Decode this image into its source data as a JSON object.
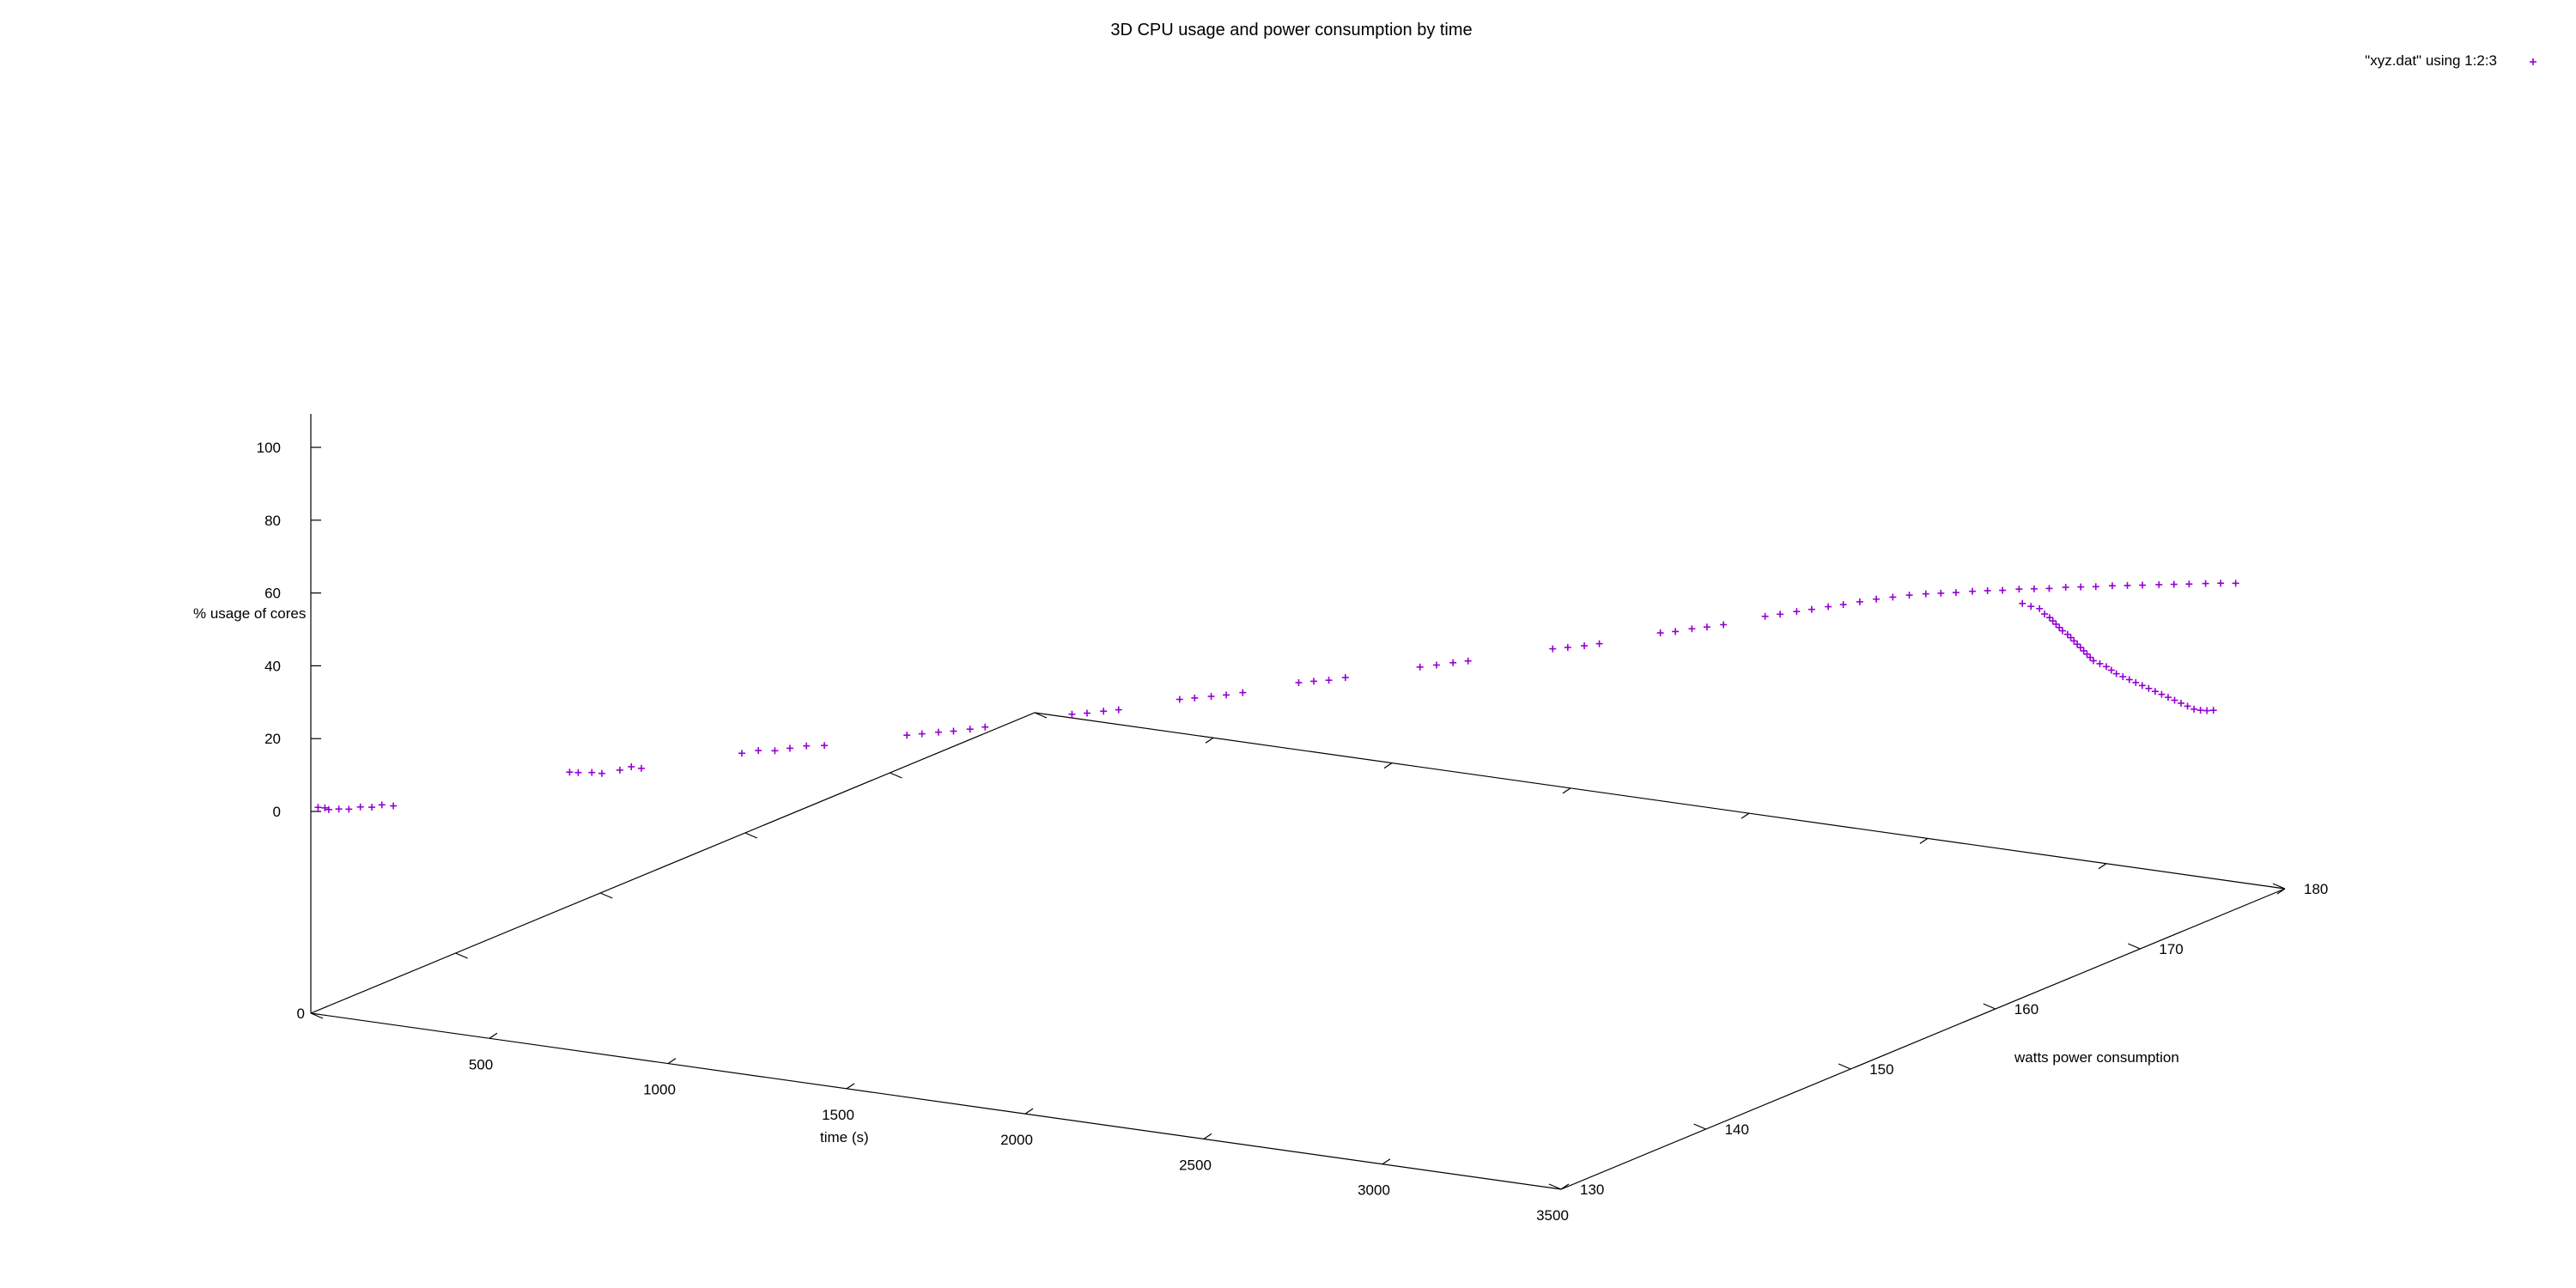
{
  "chart_data": {
    "type": "scatter",
    "title": "3D CPU usage and power consumption by time",
    "legend": {
      "label": "\"xyz.dat\" using 1:2:3",
      "position": "top-right"
    },
    "marker": "+",
    "color": "#9400d3",
    "axes": {
      "x": {
        "label": "time (s)",
        "range": [
          0,
          3500
        ],
        "ticks": [
          "500",
          "1000",
          "1500",
          "2000",
          "2500",
          "3000",
          "3500"
        ]
      },
      "y": {
        "label": "watts power consumption",
        "range": [
          130,
          180
        ],
        "ticks": [
          "130",
          "140",
          "150",
          "160",
          "170",
          "180"
        ]
      },
      "z": {
        "label": "% usage of cores",
        "range": [
          0,
          110
        ],
        "ticks": [
          "0",
          "20",
          "40",
          "60",
          "80",
          "100"
        ],
        "base_tick": "0"
      }
    },
    "grid": false,
    "series": [
      {
        "name": "\"xyz.dat\" using 1:2:3",
        "points": [
          [
            0,
            130.5,
            0.3
          ],
          [
            15,
            130.6,
            0.2
          ],
          [
            30,
            130.5,
            0.1
          ],
          [
            50,
            130.7,
            0.2
          ],
          [
            70,
            130.9,
            0.1
          ],
          [
            90,
            131.2,
            0.5
          ],
          [
            110,
            131.5,
            0.2
          ],
          [
            130,
            131.7,
            0.8
          ],
          [
            150,
            132,
            0.3
          ],
          [
            380,
            138.5,
            2
          ],
          [
            400,
            138.6,
            2
          ],
          [
            430,
            138.8,
            2.1
          ],
          [
            450,
            139,
            1.8
          ],
          [
            480,
            139.5,
            2.3
          ],
          [
            500,
            139.8,
            3
          ],
          [
            520,
            140,
            2.5
          ],
          [
            700,
            142.5,
            5
          ],
          [
            730,
            142.9,
            5.5
          ],
          [
            760,
            143.3,
            5.2
          ],
          [
            790,
            143.6,
            5.8
          ],
          [
            820,
            144,
            6.2
          ],
          [
            850,
            144.5,
            5.9
          ],
          [
            1000,
            146.5,
            7.5
          ],
          [
            1030,
            146.8,
            7.8
          ],
          [
            1060,
            147.2,
            8
          ],
          [
            1090,
            147.5,
            8.2
          ],
          [
            1120,
            147.9,
            8.5
          ],
          [
            1150,
            148.2,
            9
          ],
          [
            1300,
            150.5,
            10.8
          ],
          [
            1330,
            150.8,
            11
          ],
          [
            1360,
            151.2,
            11.3
          ],
          [
            1390,
            151.5,
            11.6
          ],
          [
            1500,
            153,
            13.5
          ],
          [
            1530,
            153.3,
            13.8
          ],
          [
            1560,
            153.7,
            14
          ],
          [
            1590,
            154,
            14.3
          ],
          [
            1620,
            154.4,
            14.7
          ],
          [
            1720,
            155.8,
            16.5
          ],
          [
            1750,
            156.1,
            16.8
          ],
          [
            1780,
            156.4,
            17
          ],
          [
            1810,
            156.8,
            17.5
          ],
          [
            1950,
            158.5,
            19.5
          ],
          [
            1980,
            158.9,
            19.8
          ],
          [
            2010,
            159.3,
            20.2
          ],
          [
            2040,
            159.6,
            20.6
          ],
          [
            2200,
            161.5,
            23
          ],
          [
            2230,
            161.8,
            23.3
          ],
          [
            2260,
            162.2,
            23.5
          ],
          [
            2290,
            162.5,
            24
          ],
          [
            2400,
            164,
            26
          ],
          [
            2430,
            164.3,
            26.3
          ],
          [
            2460,
            164.7,
            26.8
          ],
          [
            2490,
            165,
            27.2
          ],
          [
            2520,
            165.4,
            27.6
          ],
          [
            2600,
            166.3,
            29.5
          ],
          [
            2630,
            166.6,
            30
          ],
          [
            2660,
            167,
            30.5
          ],
          [
            2690,
            167.3,
            31
          ],
          [
            2720,
            167.7,
            31.5
          ],
          [
            2750,
            168,
            32
          ],
          [
            2780,
            168.4,
            32.5
          ],
          [
            2810,
            168.8,
            33
          ],
          [
            2840,
            169.2,
            33.3
          ],
          [
            2870,
            169.6,
            33.6
          ],
          [
            2900,
            170,
            33.7
          ],
          [
            2930,
            170.3,
            33.8
          ],
          [
            2960,
            170.6,
            33.9
          ],
          [
            2990,
            171,
            34
          ],
          [
            3020,
            171.3,
            34.1
          ],
          [
            3050,
            171.6,
            34.1
          ],
          [
            3080,
            172,
            34.2
          ],
          [
            3110,
            172.3,
            34.2
          ],
          [
            3140,
            172.6,
            34.2
          ],
          [
            3170,
            173,
            34.3
          ],
          [
            3200,
            173.3,
            34.3
          ],
          [
            3230,
            173.6,
            34.3
          ],
          [
            3260,
            174,
            34.3
          ],
          [
            3290,
            174.3,
            34.3
          ],
          [
            3320,
            174.6,
            34.3
          ],
          [
            3350,
            175,
            34.2
          ],
          [
            3380,
            175.3,
            34.2
          ],
          [
            3410,
            175.6,
            34.2
          ],
          [
            3440,
            176,
            34.1
          ],
          [
            3470,
            176.3,
            34.1
          ],
          [
            3500,
            176.6,
            34
          ]
        ]
      },
      {
        "name": "",
        "points": [
          [
            3150,
            170.5,
            33.7
          ],
          [
            3170,
            170.6,
            33
          ],
          [
            3190,
            170.7,
            32.5
          ],
          [
            3200,
            170.8,
            31
          ],
          [
            3210,
            170.9,
            30
          ],
          [
            3215,
            171,
            29
          ],
          [
            3220,
            171.1,
            28
          ],
          [
            3225,
            171.2,
            27
          ],
          [
            3230,
            171.3,
            26
          ],
          [
            3240,
            171.4,
            25
          ],
          [
            3245,
            171.5,
            24
          ],
          [
            3250,
            171.6,
            23
          ],
          [
            3255,
            171.7,
            22
          ],
          [
            3260,
            171.8,
            21
          ],
          [
            3265,
            171.9,
            20
          ],
          [
            3270,
            172,
            19
          ],
          [
            3275,
            172.1,
            18
          ],
          [
            3280,
            172.2,
            17
          ],
          [
            3290,
            172.4,
            16
          ],
          [
            3300,
            172.6,
            15
          ],
          [
            3310,
            172.7,
            14
          ],
          [
            3320,
            172.8,
            13
          ],
          [
            3330,
            173,
            12
          ],
          [
            3340,
            173.2,
            11
          ],
          [
            3350,
            173.4,
            10
          ],
          [
            3360,
            173.6,
            9
          ],
          [
            3370,
            173.8,
            8
          ],
          [
            3380,
            174,
            7
          ],
          [
            3390,
            174.2,
            6
          ],
          [
            3400,
            174.4,
            5
          ],
          [
            3410,
            174.6,
            4
          ],
          [
            3420,
            174.8,
            3
          ],
          [
            3430,
            175,
            2
          ],
          [
            3440,
            175.2,
            1
          ],
          [
            3450,
            175.4,
            0.5
          ],
          [
            3460,
            175.6,
            0.2
          ],
          [
            3470,
            175.8,
            0.1
          ]
        ]
      }
    ]
  }
}
